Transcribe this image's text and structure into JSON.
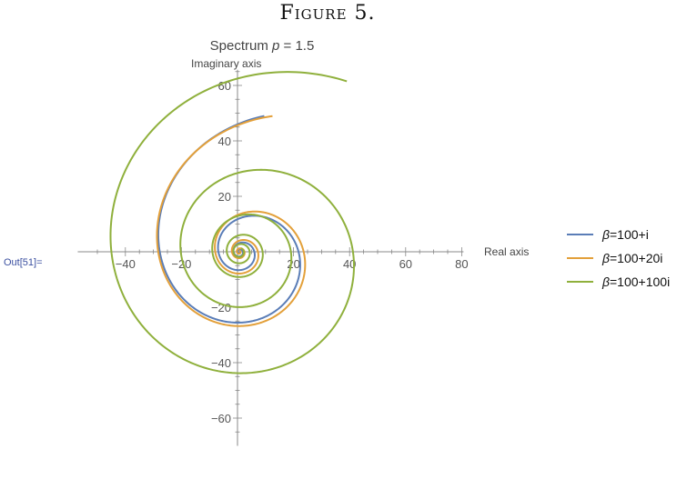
{
  "figure_caption": "Figure 5.",
  "cell_label": "Out[51]=",
  "colors": {
    "blue": "#5a7db7",
    "orange": "#e3a03a",
    "green": "#8fb03c",
    "axis": "#888888"
  },
  "chart_data": {
    "type": "line",
    "title_prefix": "Spectrum ",
    "title_var": "p",
    "title_suffix": " = 1.5",
    "xlabel": "Real axis",
    "ylabel": "Imaginary axis",
    "xlim": [
      -57,
      80
    ],
    "ylim": [
      -70,
      65
    ],
    "xticks": [
      -40,
      -20,
      20,
      40,
      60,
      80
    ],
    "yticks": [
      -60,
      -40,
      -20,
      20,
      40,
      60
    ],
    "legend_position": "right",
    "series": [
      {
        "name": "β=100+i",
        "color": "#5a7db7",
        "spiral": {
          "cx": 10,
          "cy": 0,
          "R": 49,
          "a": 0.215,
          "dc": 0.9,
          "theta0": 1.58,
          "turns": 4
        }
      },
      {
        "name": "β=100+20i",
        "color": "#e3a03a",
        "spiral": {
          "cx": 10,
          "cy": 0,
          "R": 49,
          "a": 0.195,
          "dc": 0.93,
          "theta0": 1.52,
          "turns": 4
        }
      },
      {
        "name": "β=100+100i",
        "color": "#8fb03c",
        "spiral": {
          "cx": 10,
          "cy": 0,
          "R": 68,
          "a": 0.125,
          "dc": 0.75,
          "theta0": 1.13,
          "turns": 5
        }
      }
    ]
  }
}
